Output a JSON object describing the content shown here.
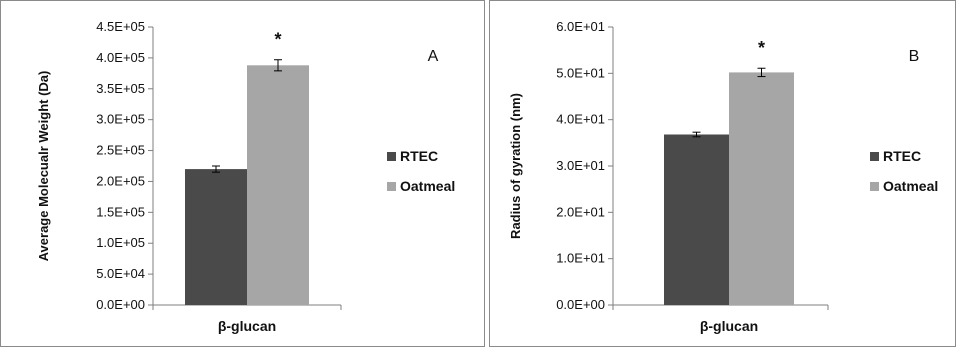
{
  "chart_data": [
    {
      "type": "bar",
      "panel_label": "A",
      "categories": [
        "β-glucan"
      ],
      "xlabel": "β-glucan",
      "ylabel": "Average Molecualr Weight (Da)",
      "ylim": [
        0,
        450000
      ],
      "yticks": [
        "0.0E+00",
        "5.0E+04",
        "1.0E+05",
        "1.5E+05",
        "2.0E+05",
        "2.5E+05",
        "3.0E+05",
        "3.5E+05",
        "4.0E+05",
        "4.5E+05"
      ],
      "series": [
        {
          "name": "RTEC",
          "values": [
            220000
          ],
          "error": [
            5000
          ],
          "color": "#4a4a4a"
        },
        {
          "name": "Oatmeal",
          "values": [
            388000
          ],
          "error": [
            9000
          ],
          "color": "#a6a6a6"
        }
      ],
      "annotations": [
        {
          "text": "*",
          "series": "Oatmeal"
        }
      ],
      "legend_position": "right"
    },
    {
      "type": "bar",
      "panel_label": "B",
      "categories": [
        "β-glucan"
      ],
      "xlabel": "β-glucan",
      "ylabel": "Radius of gyration (nm)",
      "ylim": [
        0,
        60
      ],
      "yticks": [
        "0.0E+00",
        "1.0E+01",
        "2.0E+01",
        "3.0E+01",
        "4.0E+01",
        "5.0E+01",
        "6.0E+01"
      ],
      "series": [
        {
          "name": "RTEC",
          "values": [
            36.8
          ],
          "error": [
            0.5
          ],
          "color": "#4a4a4a"
        },
        {
          "name": "Oatmeal",
          "values": [
            50.2
          ],
          "error": [
            0.9
          ],
          "color": "#a6a6a6"
        }
      ],
      "annotations": [
        {
          "text": "*",
          "series": "Oatmeal"
        }
      ],
      "legend_position": "right"
    }
  ]
}
